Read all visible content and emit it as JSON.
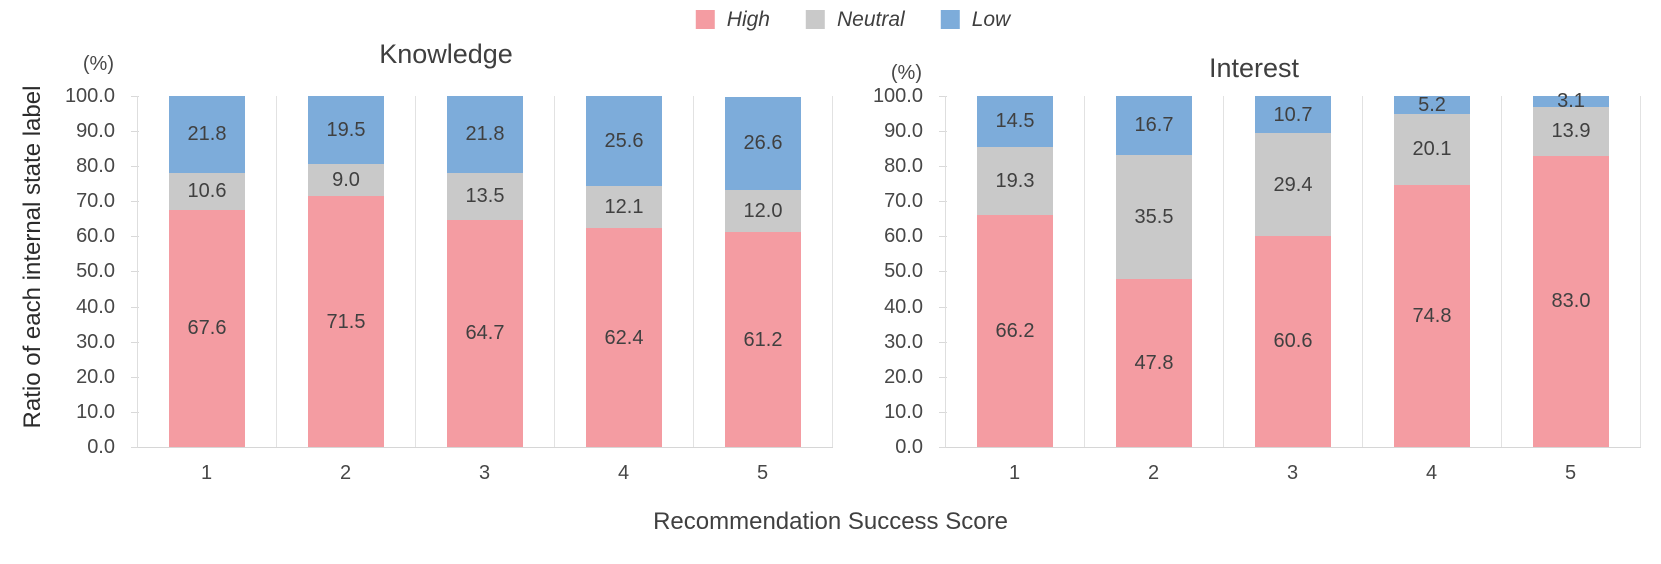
{
  "figure": {
    "x_axis_title": "Recommendation Success Score",
    "y_axis_title": "Ratio of each internal state label",
    "y_axis_unit": "(%)"
  },
  "legend": {
    "position": "top-center",
    "items": [
      {
        "label": "High",
        "color": "#F49CA2"
      },
      {
        "label": "Neutral",
        "color": "#C9C9C9"
      },
      {
        "label": "Low",
        "color": "#7DACDA"
      }
    ]
  },
  "y_axis": {
    "ticks": [
      "100.0",
      "90.0",
      "80.0",
      "70.0",
      "60.0",
      "50.0",
      "40.0",
      "30.0",
      "20.0",
      "10.0",
      "0.0"
    ]
  },
  "chart_data": [
    {
      "type": "bar",
      "stacked": true,
      "title": "Knowledge",
      "categories": [
        "1",
        "2",
        "3",
        "4",
        "5"
      ],
      "series": [
        {
          "name": "High",
          "color": "#F49CA2",
          "values": [
            67.6,
            71.5,
            64.7,
            62.4,
            61.2
          ]
        },
        {
          "name": "Neutral",
          "color": "#C9C9C9",
          "values": [
            10.6,
            9.0,
            13.5,
            12.1,
            12.0
          ]
        },
        {
          "name": "Low",
          "color": "#7DACDA",
          "values": [
            21.8,
            19.5,
            21.8,
            25.6,
            26.6
          ]
        }
      ],
      "ylim": [
        0,
        100
      ],
      "ylabel": "Ratio of each internal state label",
      "xlabel": "Recommendation Success Score",
      "grid": "vertical-category-separators",
      "data_labels": "inside-center",
      "legend_position": "top-center-shared"
    },
    {
      "type": "bar",
      "stacked": true,
      "title": "Interest",
      "categories": [
        "1",
        "2",
        "3",
        "4",
        "5"
      ],
      "series": [
        {
          "name": "High",
          "color": "#F49CA2",
          "values": [
            66.2,
            47.8,
            60.6,
            74.8,
            83.0
          ]
        },
        {
          "name": "Neutral",
          "color": "#C9C9C9",
          "values": [
            19.3,
            35.5,
            29.4,
            20.1,
            13.9
          ]
        },
        {
          "name": "Low",
          "color": "#7DACDA",
          "values": [
            14.5,
            16.7,
            10.7,
            5.2,
            3.1
          ]
        }
      ],
      "ylim": [
        0,
        100
      ],
      "ylabel": "Ratio of each internal state label",
      "xlabel": "Recommendation Success Score",
      "grid": "vertical-category-separators",
      "data_labels": "inside-center",
      "legend_position": "top-center-shared"
    }
  ]
}
